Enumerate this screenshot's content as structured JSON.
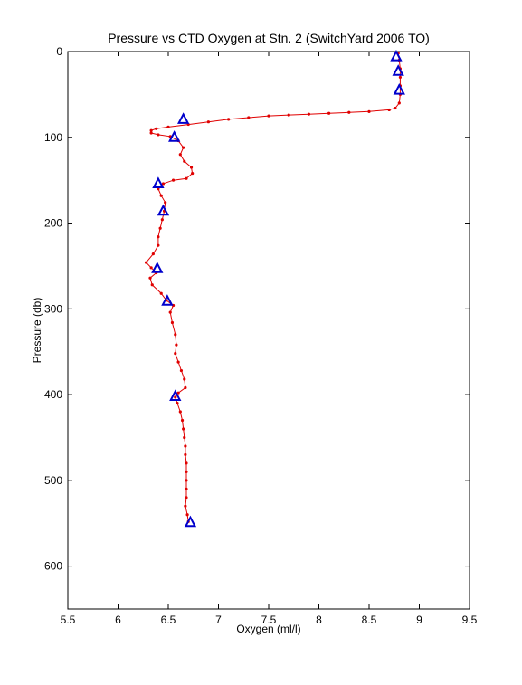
{
  "chart_data": {
    "type": "scatter",
    "title": "Pressure vs CTD Oxygen at Stn. 2 (SwitchYard 2006 TO)",
    "xlabel": "Oxygen (ml/l)",
    "ylabel": "Pressure (db)",
    "xlim": [
      5.5,
      9.5
    ],
    "ylim": [
      0,
      650
    ],
    "y_reversed": true,
    "grid": false,
    "xticks": [
      5.5,
      6,
      6.5,
      7,
      7.5,
      8,
      8.5,
      9,
      9.5
    ],
    "yticks": [
      0,
      100,
      200,
      300,
      400,
      500,
      600
    ],
    "series": [
      {
        "marker": "dot-line",
        "color": "#e00000",
        "points": [
          [
            8.79,
            2
          ],
          [
            8.8,
            10
          ],
          [
            8.81,
            20
          ],
          [
            8.81,
            30
          ],
          [
            8.81,
            40
          ],
          [
            8.81,
            50
          ],
          [
            8.8,
            60
          ],
          [
            8.76,
            66
          ],
          [
            8.7,
            68
          ],
          [
            8.5,
            70
          ],
          [
            8.3,
            71
          ],
          [
            8.1,
            72
          ],
          [
            7.9,
            73
          ],
          [
            7.7,
            74
          ],
          [
            7.5,
            75
          ],
          [
            7.3,
            77
          ],
          [
            7.1,
            79
          ],
          [
            6.9,
            82
          ],
          [
            6.7,
            85
          ],
          [
            6.5,
            88
          ],
          [
            6.38,
            90
          ],
          [
            6.33,
            92
          ],
          [
            6.33,
            95
          ],
          [
            6.4,
            97
          ],
          [
            6.52,
            99
          ],
          [
            6.6,
            104
          ],
          [
            6.65,
            112
          ],
          [
            6.62,
            120
          ],
          [
            6.66,
            128
          ],
          [
            6.73,
            135
          ],
          [
            6.74,
            142
          ],
          [
            6.68,
            148
          ],
          [
            6.55,
            150
          ],
          [
            6.45,
            154
          ],
          [
            6.4,
            160
          ],
          [
            6.43,
            168
          ],
          [
            6.47,
            176
          ],
          [
            6.46,
            186
          ],
          [
            6.44,
            196
          ],
          [
            6.42,
            206
          ],
          [
            6.4,
            216
          ],
          [
            6.4,
            226
          ],
          [
            6.35,
            236
          ],
          [
            6.28,
            246
          ],
          [
            6.33,
            252
          ],
          [
            6.38,
            258
          ],
          [
            6.32,
            264
          ],
          [
            6.34,
            272
          ],
          [
            6.43,
            282
          ],
          [
            6.48,
            290
          ],
          [
            6.55,
            296
          ],
          [
            6.52,
            304
          ],
          [
            6.54,
            316
          ],
          [
            6.57,
            330
          ],
          [
            6.58,
            342
          ],
          [
            6.57,
            352
          ],
          [
            6.6,
            362
          ],
          [
            6.63,
            372
          ],
          [
            6.66,
            382
          ],
          [
            6.67,
            392
          ],
          [
            6.6,
            398
          ],
          [
            6.57,
            403
          ],
          [
            6.59,
            410
          ],
          [
            6.62,
            420
          ],
          [
            6.64,
            430
          ],
          [
            6.65,
            440
          ],
          [
            6.66,
            450
          ],
          [
            6.67,
            460
          ],
          [
            6.67,
            470
          ],
          [
            6.68,
            480
          ],
          [
            6.68,
            490
          ],
          [
            6.68,
            500
          ],
          [
            6.68,
            510
          ],
          [
            6.68,
            520
          ],
          [
            6.67,
            530
          ],
          [
            6.69,
            540
          ],
          [
            6.7,
            548
          ]
        ]
      },
      {
        "marker": "triangle",
        "color": "#0000cc",
        "points": [
          [
            8.77,
            6
          ],
          [
            8.79,
            23
          ],
          [
            8.8,
            45
          ],
          [
            6.65,
            79
          ],
          [
            6.56,
            100
          ],
          [
            6.4,
            154
          ],
          [
            6.45,
            186
          ],
          [
            6.39,
            253
          ],
          [
            6.49,
            291
          ],
          [
            6.57,
            402
          ],
          [
            6.72,
            549
          ]
        ]
      }
    ]
  }
}
